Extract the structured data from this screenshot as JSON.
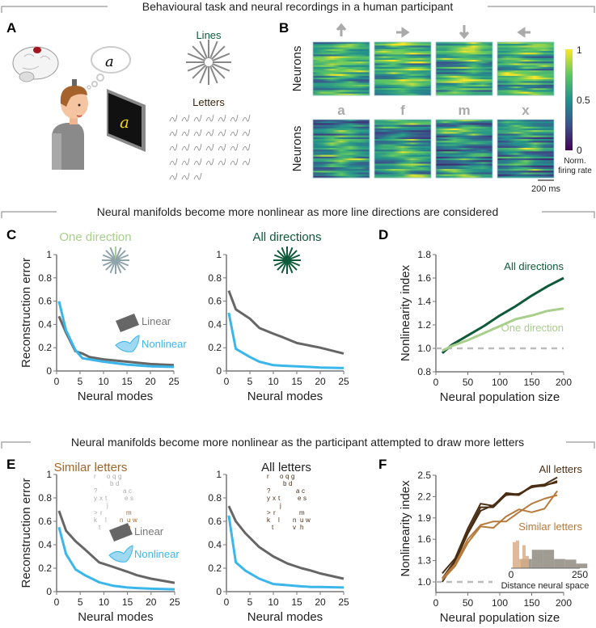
{
  "sections": [
    "Behavioural task and neural recordings in a human participant",
    "Neural manifolds become more nonlinear as more line directions are considered",
    "Neural manifolds become more nonlinear as the participant attempted to draw more letters"
  ],
  "panel_labels": [
    "A",
    "B",
    "C",
    "D",
    "E",
    "F"
  ],
  "panel_a": {
    "thought_letter": "a",
    "screen_letter": "a",
    "lines_label": "Lines",
    "letters_label": "Letters"
  },
  "panel_b": {
    "top_stimuli": [
      "up-arrow-icon",
      "right-arrow-icon",
      "down-arrow-icon",
      "left-arrow-icon"
    ],
    "bottom_stimuli": [
      "a",
      "f",
      "m",
      "x"
    ],
    "ylabel": "Neurons",
    "colorbar_ticks": [
      "1",
      "0.5",
      "0"
    ],
    "colorbar_label_1": "Norm.",
    "colorbar_label_2": "firing rate",
    "scalebar_label": "200 ms"
  },
  "legend": {
    "linear": "Linear",
    "nonlinear": "Nonlinear"
  },
  "colors": {
    "linear": "#666666",
    "nonlinear": "#3bb6ea",
    "all_dir": "#0f5a3a",
    "one_dir": "#a8cf8c",
    "all_letters": "#4a2e14",
    "similar_letters": "#b57a3c"
  },
  "chart_data": [
    {
      "id": "C-left",
      "type": "line",
      "title": "One direction",
      "xlabel": "Neural modes",
      "ylabel": "Reconstruction error",
      "xlim": [
        0,
        25
      ],
      "ylim": [
        0,
        1
      ],
      "xticks": [
        "0",
        "5",
        "10",
        "15",
        "20",
        "25"
      ],
      "yticks": [
        "0",
        "0.2",
        "0.4",
        "0.6",
        "0.8",
        "1"
      ],
      "x": [
        0.5,
        2,
        4,
        5.5,
        7,
        10,
        15,
        20,
        25
      ],
      "series": [
        {
          "name": "Linear",
          "values": [
            0.47,
            0.33,
            0.17,
            0.15,
            0.12,
            0.1,
            0.08,
            0.06,
            0.05
          ]
        },
        {
          "name": "Nonlinear",
          "values": [
            0.6,
            0.35,
            0.18,
            0.11,
            0.1,
            0.08,
            0.055,
            0.04,
            0.035
          ]
        }
      ]
    },
    {
      "id": "C-right",
      "type": "line",
      "title": "All directions",
      "xlabel": "Neural modes",
      "ylabel": "",
      "xlim": [
        0,
        25
      ],
      "ylim": [
        0,
        1
      ],
      "xticks": [
        "0",
        "5",
        "10",
        "15",
        "20",
        "25"
      ],
      "yticks": [
        "0",
        "0.2",
        "0.4",
        "0.6",
        "0.8",
        "1"
      ],
      "x": [
        0.5,
        2,
        5,
        7,
        10,
        12,
        15,
        20,
        25
      ],
      "series": [
        {
          "name": "Linear",
          "values": [
            0.69,
            0.53,
            0.45,
            0.37,
            0.32,
            0.29,
            0.24,
            0.2,
            0.15
          ]
        },
        {
          "name": "Nonlinear",
          "values": [
            0.5,
            0.19,
            0.12,
            0.08,
            0.05,
            0.045,
            0.04,
            0.03,
            0.025
          ]
        }
      ]
    },
    {
      "id": "D",
      "type": "line",
      "title": "",
      "xlabel": "Neural population size",
      "ylabel": "Nonlinearity index",
      "xlim": [
        0,
        200
      ],
      "ylim": [
        0.8,
        1.8
      ],
      "xticks": [
        "0",
        "50",
        "100",
        "150",
        "200"
      ],
      "yticks": [
        "0.8",
        "1.0",
        "1.2",
        "1.4",
        "1.6",
        "1.8"
      ],
      "x": [
        10,
        25,
        50,
        75,
        100,
        125,
        150,
        175,
        200
      ],
      "series": [
        {
          "name": "All directions",
          "values": [
            0.96,
            1.03,
            1.11,
            1.19,
            1.28,
            1.36,
            1.45,
            1.53,
            1.6
          ]
        },
        {
          "name": "One direction",
          "values": [
            0.98,
            1.02,
            1.07,
            1.13,
            1.19,
            1.25,
            1.28,
            1.32,
            1.34
          ]
        }
      ],
      "reference_line": 1.0
    },
    {
      "id": "E-left",
      "type": "line",
      "title": "Similar letters",
      "xlabel": "Neural modes",
      "ylabel": "Reconstruction error",
      "xlim": [
        0,
        25
      ],
      "ylim": [
        0,
        1
      ],
      "xticks": [
        "0",
        "5",
        "10",
        "15",
        "20",
        "25"
      ],
      "yticks": [
        "0",
        "0.2",
        "0.4",
        "0.6",
        "0.8",
        "1"
      ],
      "x": [
        0.5,
        2,
        4,
        6,
        9,
        12,
        15,
        17,
        20,
        25
      ],
      "series": [
        {
          "name": "Linear",
          "values": [
            0.69,
            0.52,
            0.43,
            0.36,
            0.25,
            0.21,
            0.17,
            0.14,
            0.11,
            0.075
          ]
        },
        {
          "name": "Nonlinear",
          "values": [
            0.55,
            0.32,
            0.19,
            0.14,
            0.08,
            0.05,
            0.035,
            0.03,
            0.025,
            0.02
          ]
        }
      ]
    },
    {
      "id": "E-right",
      "type": "line",
      "title": "All letters",
      "xlabel": "Neural modes",
      "ylabel": "",
      "xlim": [
        0,
        25
      ],
      "ylim": [
        0,
        1
      ],
      "xticks": [
        "0",
        "5",
        "10",
        "15",
        "20",
        "25"
      ],
      "yticks": [
        "0",
        "0.2",
        "0.4",
        "0.6",
        "0.8",
        "1"
      ],
      "x": [
        0.5,
        2,
        4,
        7,
        10,
        13,
        16,
        18,
        20,
        25
      ],
      "series": [
        {
          "name": "Linear",
          "values": [
            0.73,
            0.6,
            0.5,
            0.38,
            0.3,
            0.24,
            0.2,
            0.18,
            0.155,
            0.11
          ]
        },
        {
          "name": "Nonlinear",
          "values": [
            0.65,
            0.25,
            0.18,
            0.11,
            0.065,
            0.055,
            0.045,
            0.04,
            0.04,
            0.035
          ]
        }
      ]
    },
    {
      "id": "F",
      "type": "line",
      "title": "",
      "xlabel": "Neural population size",
      "ylabel": "Nonlinearity index",
      "xlim": [
        0,
        200
      ],
      "ylim": [
        0.9,
        2.5
      ],
      "xticks": [
        "0",
        "50",
        "100",
        "150",
        "200"
      ],
      "yticks": [
        "1.0",
        "1.3",
        "1.6",
        "1.9",
        "2.2",
        "2.5"
      ],
      "x": [
        10,
        30,
        50,
        70,
        90,
        110,
        130,
        150,
        170,
        190
      ],
      "series": [
        {
          "name": "All letters",
          "values": [
            1.12,
            1.33,
            1.75,
            2.1,
            2.07,
            2.25,
            2.23,
            2.35,
            2.37,
            2.47
          ]
        },
        {
          "name": "All letters",
          "values": [
            1.05,
            1.3,
            1.7,
            2.05,
            2.05,
            2.23,
            2.22,
            2.34,
            2.35,
            2.42
          ]
        },
        {
          "name": "All letters",
          "values": [
            1.0,
            1.28,
            1.68,
            2.0,
            2.08,
            2.22,
            2.24,
            2.33,
            2.36,
            2.4
          ]
        },
        {
          "name": "Similar letters",
          "values": [
            1.03,
            1.22,
            1.55,
            1.78,
            1.76,
            1.92,
            2.02,
            1.98,
            2.03,
            2.28
          ]
        },
        {
          "name": "Similar letters",
          "values": [
            1.05,
            1.25,
            1.6,
            1.8,
            1.85,
            1.85,
            1.98,
            2.1,
            2.17,
            2.22
          ]
        }
      ],
      "reference_line": 1.0,
      "inset": {
        "xlabel": "Distance neural space",
        "xticks": [
          "0",
          "250"
        ],
        "similar_bins": [
          0.85,
          0.9,
          0.3,
          0.75,
          0.4
        ],
        "all_bins": [
          0.3,
          0.6,
          0.6,
          0.3,
          0.28,
          0.15
        ]
      }
    }
  ]
}
